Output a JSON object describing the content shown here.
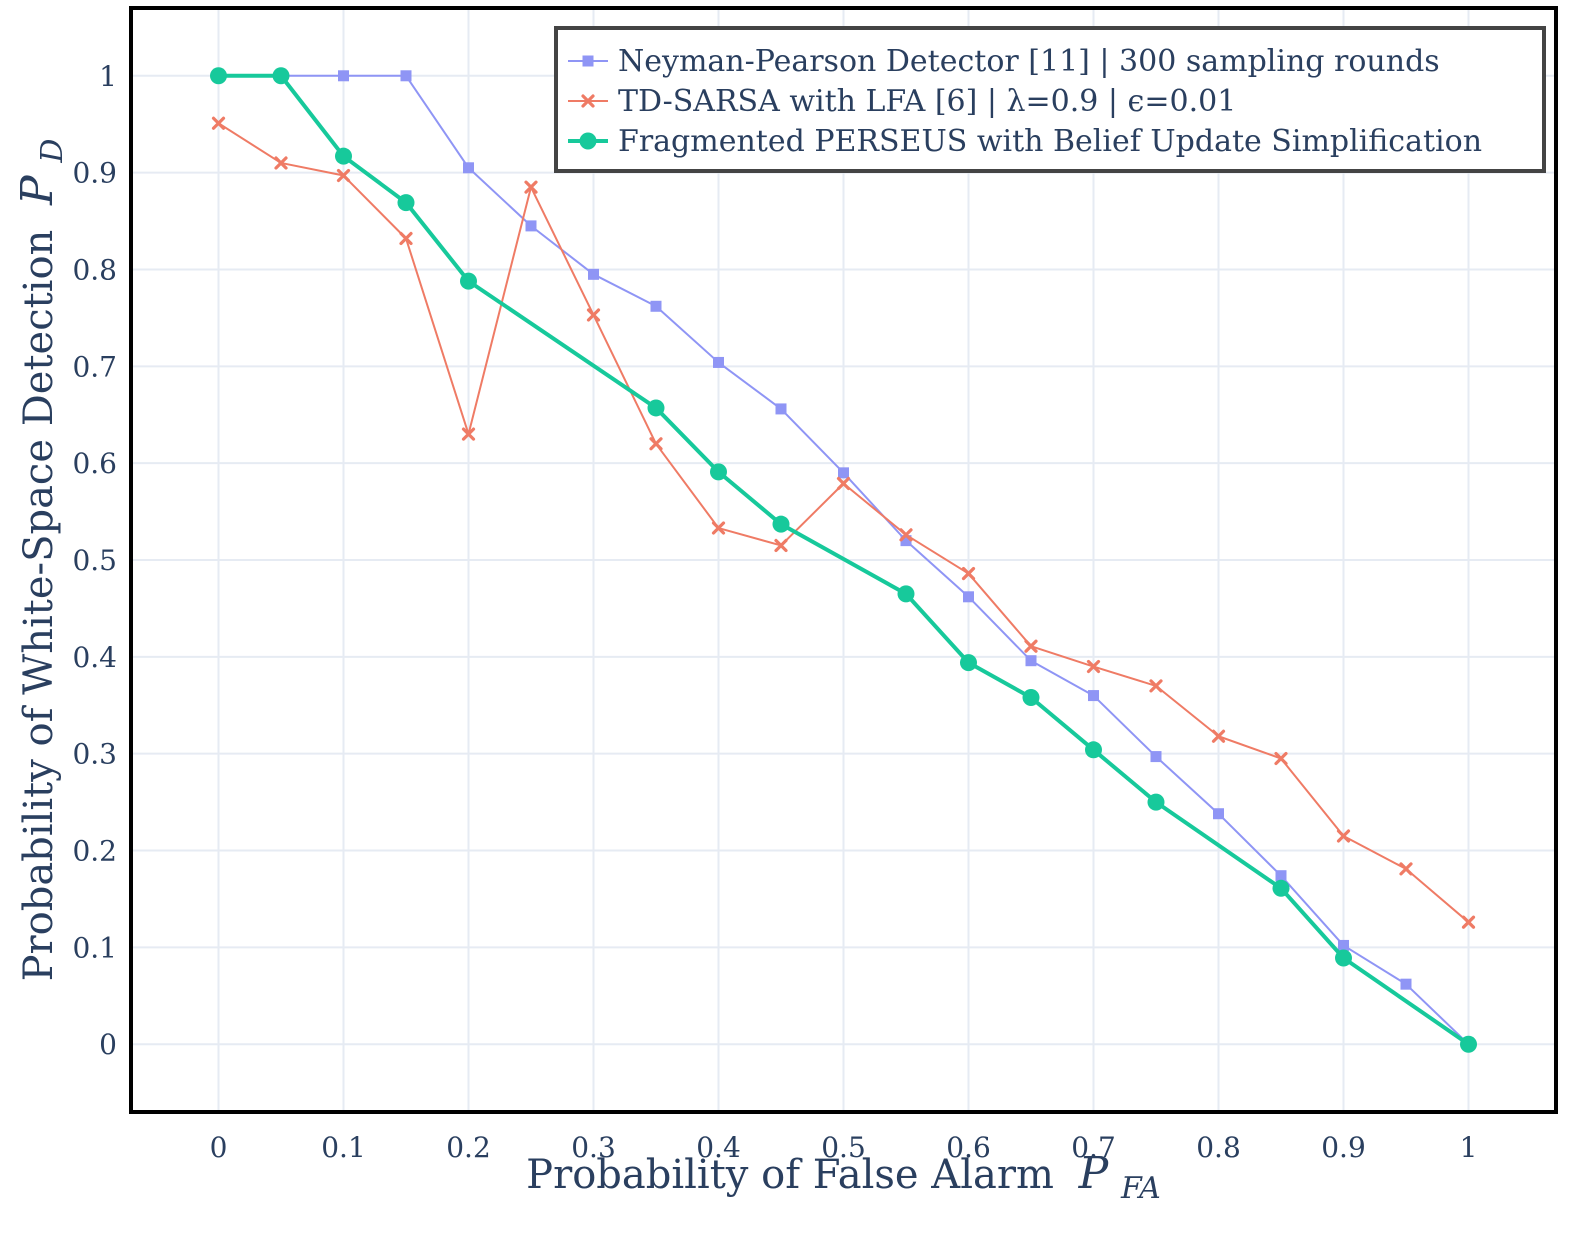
{
  "chart_data": {
    "type": "line",
    "xlabel": "Probability of False Alarm",
    "xlabel_symbol": "P",
    "xlabel_sub": "FA",
    "ylabel": "Probability of White-Space Detection",
    "ylabel_symbol": "P",
    "ylabel_sub": "D",
    "xlim": [
      -0.07,
      1.07
    ],
    "ylim": [
      -0.07,
      1.07
    ],
    "xticks": [
      "0",
      "0.1",
      "0.2",
      "0.3",
      "0.4",
      "0.5",
      "0.6",
      "0.7",
      "0.8",
      "0.9",
      "1"
    ],
    "yticks": [
      "0",
      "0.1",
      "0.2",
      "0.3",
      "0.4",
      "0.5",
      "0.6",
      "0.7",
      "0.8",
      "0.9",
      "1"
    ],
    "grid": true,
    "legend_position": "top-right",
    "series": [
      {
        "name": "Neyman-Pearson Detector [11] | 300 sampling rounds",
        "color": "#8f95f5",
        "marker": "square",
        "x": [
          0,
          0.05,
          0.1,
          0.15,
          0.2,
          0.25,
          0.3,
          0.35,
          0.4,
          0.45,
          0.5,
          0.55,
          0.6,
          0.65,
          0.7,
          0.75,
          0.8,
          0.85,
          0.9,
          0.95,
          1
        ],
        "y": [
          1,
          1,
          1,
          1,
          0.905,
          0.845,
          0.795,
          0.762,
          0.704,
          0.656,
          0.59,
          0.52,
          0.462,
          0.396,
          0.36,
          0.297,
          0.238,
          0.174,
          0.102,
          0.062,
          0
        ]
      },
      {
        "name": "TD-SARSA with LFA [6] | λ=0.9 | ϵ=0.01",
        "color": "#ef7b65",
        "marker": "x",
        "x": [
          0,
          0.05,
          0.1,
          0.15,
          0.2,
          0.25,
          0.3,
          0.35,
          0.4,
          0.45,
          0.5,
          0.55,
          0.6,
          0.65,
          0.7,
          0.75,
          0.8,
          0.85,
          0.9,
          0.95,
          1
        ],
        "y": [
          0.951,
          0.91,
          0.897,
          0.832,
          0.63,
          0.885,
          0.753,
          0.62,
          0.533,
          0.515,
          0.579,
          0.526,
          0.486,
          0.411,
          0.39,
          0.37,
          0.318,
          0.295,
          0.215,
          0.181,
          0.126
        ]
      },
      {
        "name": "Fragmented PERSEUS with Belief Update Simplification",
        "color": "#17c99b",
        "marker": "circle",
        "x": [
          0,
          0.05,
          0.1,
          0.15,
          0.2,
          0.35,
          0.4,
          0.45,
          0.55,
          0.6,
          0.65,
          0.7,
          0.75,
          0.85,
          0.9,
          1
        ],
        "y": [
          1,
          1,
          0.917,
          0.869,
          0.788,
          0.657,
          0.591,
          0.537,
          0.465,
          0.394,
          0.358,
          0.304,
          0.25,
          0.161,
          0.089,
          0
        ]
      }
    ]
  }
}
